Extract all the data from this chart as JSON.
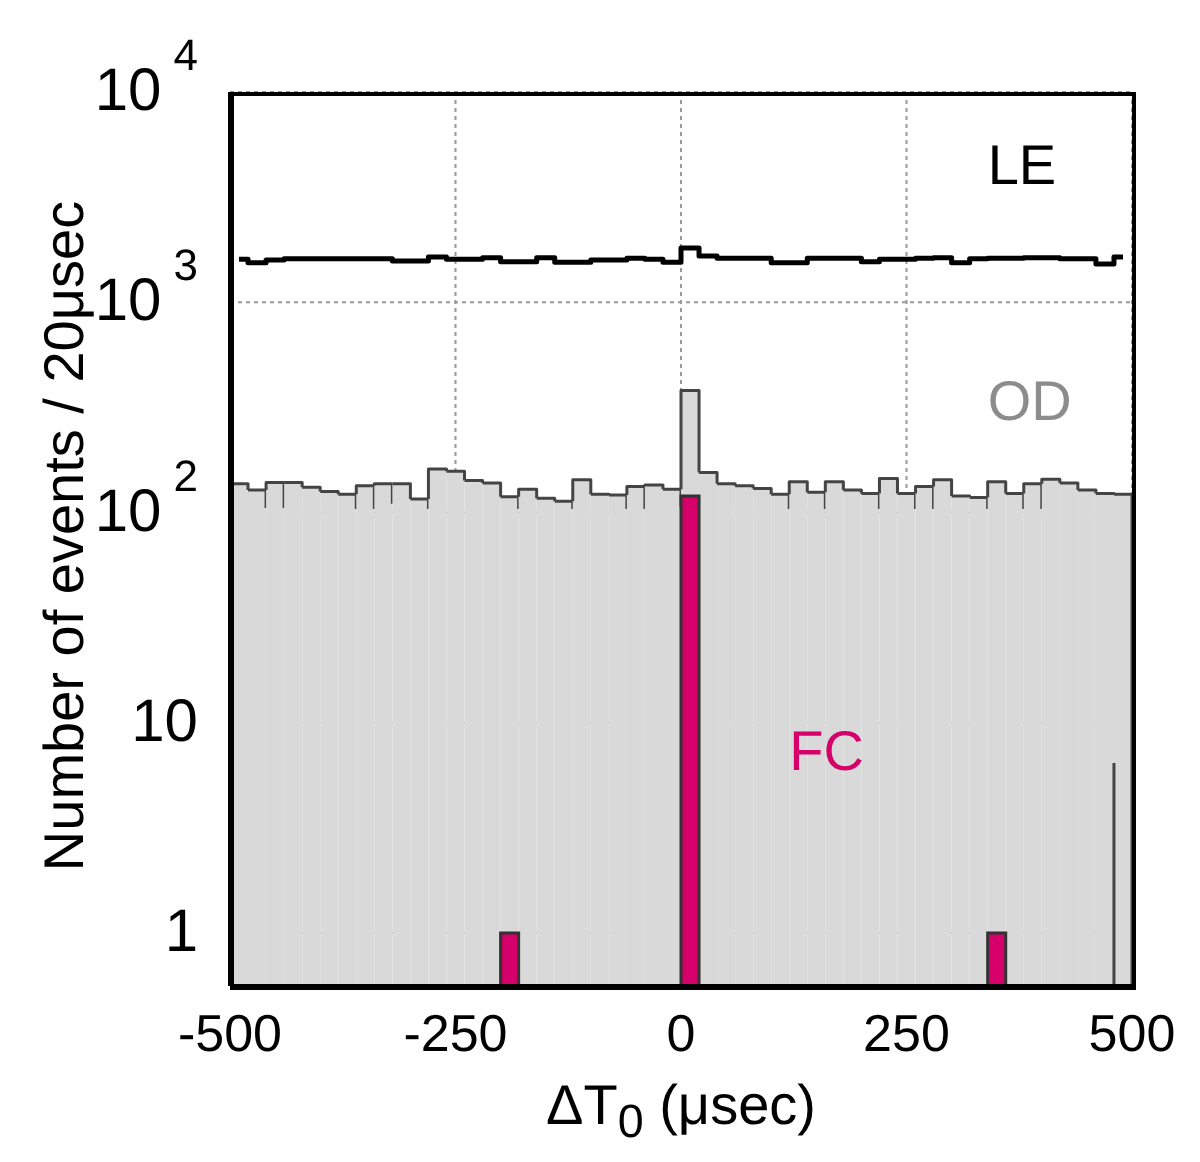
{
  "chart_data": {
    "type": "histogram",
    "xlabel": "ΔT$_{0}$ (μsec)",
    "ylabel": "Number of events / 20μsec",
    "log": "y",
    "grid": true,
    "legend": false,
    "bins": [
      -500,
      -480,
      -460,
      -440,
      -420,
      -400,
      -380,
      -360,
      -340,
      -320,
      -300,
      -280,
      -260,
      -240,
      -220,
      -200,
      -180,
      -160,
      -140,
      -120,
      -100,
      -80,
      -60,
      -40,
      -20,
      0,
      20,
      40,
      60,
      80,
      100,
      120,
      140,
      160,
      180,
      200,
      220,
      240,
      260,
      280,
      300,
      320,
      340,
      360,
      380,
      400,
      420,
      440,
      460,
      480,
      500
    ],
    "xlim": [
      -500,
      500
    ],
    "xticks": [
      -500,
      -250,
      0,
      250,
      500
    ],
    "ylim": [
      0.56,
      10000
    ],
    "yticks": [
      1,
      10,
      {
        "value": 100,
        "label": "10$^{2}$"
      },
      {
        "value": 1000,
        "label": "10$^{3}$"
      },
      {
        "value": 10000,
        "label": "10$^{4}$"
      }
    ],
    "series": [
      {
        "name": "LE",
        "type": "step",
        "color": "#000000",
        "x": [
          -490,
          -470,
          -450,
          -430,
          -410,
          -390,
          -370,
          -350,
          -330,
          -310,
          -290,
          -270,
          -250,
          -230,
          -210,
          -190,
          -170,
          -150,
          -130,
          -110,
          -90,
          -70,
          -50,
          -30,
          -10,
          10,
          30,
          50,
          70,
          90,
          110,
          130,
          150,
          170,
          190,
          210,
          230,
          250,
          270,
          290,
          310,
          330,
          350,
          370,
          390,
          410,
          430,
          450,
          470,
          490
        ],
        "values": [
          1600,
          1540,
          1590,
          1610,
          1610,
          1610,
          1610,
          1610,
          1610,
          1570,
          1570,
          1640,
          1600,
          1600,
          1630,
          1560,
          1560,
          1630,
          1550,
          1550,
          1590,
          1590,
          1620,
          1600,
          1550,
          1810,
          1660,
          1620,
          1620,
          1620,
          1540,
          1540,
          1620,
          1620,
          1620,
          1560,
          1600,
          1600,
          1620,
          1630,
          1540,
          1610,
          1620,
          1620,
          1630,
          1630,
          1610,
          1610,
          1520,
          1640
        ]
      },
      {
        "name": "OD",
        "type": "histogram",
        "color": "#d9d9d9",
        "values": [
          137,
          128,
          139,
          139,
          132,
          126,
          122,
          134,
          137,
          137,
          116,
          161,
          157,
          142,
          138,
          119,
          129,
          117,
          113,
          143,
          122,
          121,
          133,
          135,
          129,
          380,
          155,
          137,
          134,
          130,
          122,
          140,
          125,
          140,
          128,
          123,
          145,
          123,
          133,
          143,
          120,
          118,
          140,
          123,
          137,
          144,
          138,
          128,
          123,
          122
        ]
      },
      {
        "name": "FC",
        "type": "histogram",
        "color": "#d6006a",
        "values": [
          null,
          null,
          null,
          null,
          null,
          null,
          null,
          null,
          null,
          null,
          null,
          null,
          null,
          null,
          null,
          1,
          null,
          null,
          null,
          null,
          null,
          null,
          null,
          null,
          null,
          120,
          null,
          null,
          null,
          null,
          null,
          null,
          null,
          null,
          null,
          null,
          null,
          null,
          null,
          null,
          null,
          null,
          1,
          null,
          null,
          null,
          null,
          null,
          null,
          null
        ]
      }
    ]
  }
}
